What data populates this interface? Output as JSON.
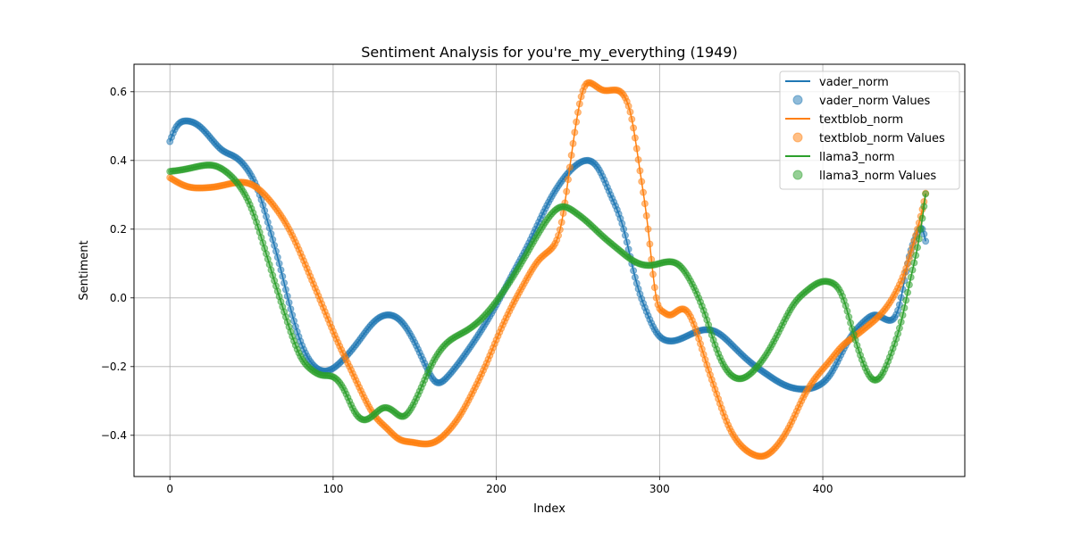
{
  "chart_data": {
    "type": "line",
    "title": "Sentiment Analysis for you're_my_everything (1949)",
    "xlabel": "Index",
    "ylabel": "Sentiment",
    "xlim": [
      -22,
      487
    ],
    "ylim": [
      -0.52,
      0.68
    ],
    "xticks": [
      0,
      100,
      200,
      300,
      400
    ],
    "yticks": [
      -0.4,
      -0.2,
      0.0,
      0.2,
      0.4,
      0.6
    ],
    "xtick_labels": [
      "0",
      "100",
      "200",
      "300",
      "400"
    ],
    "ytick_labels": [
      "−0.4",
      "−0.2",
      "0.0",
      "0.2",
      "0.4",
      "0.6"
    ],
    "grid": true,
    "legend_position": "top-right",
    "n_points": 464,
    "series": [
      {
        "name": "vader_norm",
        "scatter_name": "vader_norm Values",
        "color": "#1f77b4",
        "keypoints": [
          [
            0,
            0.455
          ],
          [
            3,
            0.49
          ],
          [
            10,
            0.515
          ],
          [
            18,
            0.5
          ],
          [
            25,
            0.465
          ],
          [
            32,
            0.43
          ],
          [
            40,
            0.41
          ],
          [
            48,
            0.37
          ],
          [
            55,
            0.3
          ],
          [
            60,
            0.22
          ],
          [
            67,
            0.1
          ],
          [
            75,
            -0.05
          ],
          [
            82,
            -0.15
          ],
          [
            90,
            -0.205
          ],
          [
            98,
            -0.21
          ],
          [
            105,
            -0.185
          ],
          [
            115,
            -0.13
          ],
          [
            125,
            -0.07
          ],
          [
            135,
            -0.05
          ],
          [
            142,
            -0.07
          ],
          [
            150,
            -0.13
          ],
          [
            157,
            -0.2
          ],
          [
            163,
            -0.245
          ],
          [
            170,
            -0.23
          ],
          [
            180,
            -0.17
          ],
          [
            190,
            -0.1
          ],
          [
            200,
            -0.02
          ],
          [
            210,
            0.07
          ],
          [
            220,
            0.16
          ],
          [
            230,
            0.26
          ],
          [
            240,
            0.34
          ],
          [
            250,
            0.39
          ],
          [
            256,
            0.4
          ],
          [
            262,
            0.38
          ],
          [
            270,
            0.3
          ],
          [
            278,
            0.2
          ],
          [
            285,
            0.06
          ],
          [
            292,
            -0.04
          ],
          [
            298,
            -0.1
          ],
          [
            305,
            -0.125
          ],
          [
            315,
            -0.115
          ],
          [
            325,
            -0.095
          ],
          [
            335,
            -0.1
          ],
          [
            345,
            -0.14
          ],
          [
            355,
            -0.185
          ],
          [
            365,
            -0.22
          ],
          [
            375,
            -0.25
          ],
          [
            385,
            -0.265
          ],
          [
            395,
            -0.26
          ],
          [
            405,
            -0.22
          ],
          [
            415,
            -0.13
          ],
          [
            425,
            -0.07
          ],
          [
            432,
            -0.05
          ],
          [
            440,
            -0.065
          ],
          [
            447,
            -0.02
          ],
          [
            452,
            0.1
          ],
          [
            458,
            0.19
          ],
          [
            461,
            0.2
          ],
          [
            463,
            0.165
          ]
        ]
      },
      {
        "name": "textblob_norm",
        "scatter_name": "textblob_norm Values",
        "color": "#ff7f0e",
        "keypoints": [
          [
            0,
            0.35
          ],
          [
            10,
            0.325
          ],
          [
            20,
            0.32
          ],
          [
            30,
            0.325
          ],
          [
            40,
            0.335
          ],
          [
            50,
            0.33
          ],
          [
            57,
            0.305
          ],
          [
            65,
            0.26
          ],
          [
            73,
            0.2
          ],
          [
            80,
            0.13
          ],
          [
            88,
            0.04
          ],
          [
            95,
            -0.04
          ],
          [
            103,
            -0.13
          ],
          [
            110,
            -0.2
          ],
          [
            118,
            -0.28
          ],
          [
            125,
            -0.34
          ],
          [
            133,
            -0.38
          ],
          [
            140,
            -0.41
          ],
          [
            148,
            -0.42
          ],
          [
            155,
            -0.425
          ],
          [
            162,
            -0.42
          ],
          [
            170,
            -0.39
          ],
          [
            178,
            -0.34
          ],
          [
            186,
            -0.27
          ],
          [
            194,
            -0.19
          ],
          [
            202,
            -0.1
          ],
          [
            210,
            -0.02
          ],
          [
            218,
            0.05
          ],
          [
            226,
            0.11
          ],
          [
            233,
            0.14
          ],
          [
            240,
            0.22
          ],
          [
            245,
            0.38
          ],
          [
            250,
            0.54
          ],
          [
            254,
            0.615
          ],
          [
            258,
            0.625
          ],
          [
            265,
            0.605
          ],
          [
            273,
            0.605
          ],
          [
            278,
            0.59
          ],
          [
            283,
            0.52
          ],
          [
            288,
            0.37
          ],
          [
            293,
            0.2
          ],
          [
            298,
            0.0
          ],
          [
            302,
            -0.04
          ],
          [
            306,
            -0.05
          ],
          [
            312,
            -0.035
          ],
          [
            317,
            -0.04
          ],
          [
            322,
            -0.09
          ],
          [
            328,
            -0.18
          ],
          [
            335,
            -0.28
          ],
          [
            342,
            -0.37
          ],
          [
            350,
            -0.43
          ],
          [
            357,
            -0.455
          ],
          [
            364,
            -0.46
          ],
          [
            372,
            -0.43
          ],
          [
            380,
            -0.37
          ],
          [
            388,
            -0.29
          ],
          [
            396,
            -0.23
          ],
          [
            404,
            -0.185
          ],
          [
            412,
            -0.14
          ],
          [
            420,
            -0.11
          ],
          [
            428,
            -0.08
          ],
          [
            436,
            -0.045
          ],
          [
            444,
            0.01
          ],
          [
            452,
            0.1
          ],
          [
            458,
            0.2
          ],
          [
            462,
            0.28
          ],
          [
            464,
            0.33
          ]
        ]
      },
      {
        "name": "llama3_norm",
        "scatter_name": "llama3_norm Values",
        "color": "#2ca02c",
        "keypoints": [
          [
            0,
            0.368
          ],
          [
            10,
            0.375
          ],
          [
            20,
            0.385
          ],
          [
            27,
            0.385
          ],
          [
            35,
            0.365
          ],
          [
            42,
            0.33
          ],
          [
            50,
            0.26
          ],
          [
            57,
            0.16
          ],
          [
            64,
            0.05
          ],
          [
            72,
            -0.07
          ],
          [
            80,
            -0.17
          ],
          [
            87,
            -0.21
          ],
          [
            93,
            -0.225
          ],
          [
            100,
            -0.23
          ],
          [
            107,
            -0.27
          ],
          [
            113,
            -0.33
          ],
          [
            119,
            -0.355
          ],
          [
            125,
            -0.34
          ],
          [
            131,
            -0.32
          ],
          [
            137,
            -0.33
          ],
          [
            143,
            -0.345
          ],
          [
            148,
            -0.32
          ],
          [
            155,
            -0.25
          ],
          [
            162,
            -0.18
          ],
          [
            170,
            -0.13
          ],
          [
            180,
            -0.1
          ],
          [
            190,
            -0.065
          ],
          [
            200,
            -0.01
          ],
          [
            210,
            0.06
          ],
          [
            220,
            0.14
          ],
          [
            230,
            0.22
          ],
          [
            240,
            0.265
          ],
          [
            248,
            0.25
          ],
          [
            256,
            0.22
          ],
          [
            265,
            0.18
          ],
          [
            275,
            0.14
          ],
          [
            285,
            0.105
          ],
          [
            295,
            0.095
          ],
          [
            305,
            0.105
          ],
          [
            312,
            0.095
          ],
          [
            320,
            0.04
          ],
          [
            328,
            -0.05
          ],
          [
            335,
            -0.15
          ],
          [
            342,
            -0.215
          ],
          [
            350,
            -0.235
          ],
          [
            358,
            -0.21
          ],
          [
            366,
            -0.16
          ],
          [
            374,
            -0.09
          ],
          [
            382,
            -0.02
          ],
          [
            390,
            0.02
          ],
          [
            398,
            0.045
          ],
          [
            405,
            0.045
          ],
          [
            412,
            0.005
          ],
          [
            418,
            -0.09
          ],
          [
            424,
            -0.18
          ],
          [
            430,
            -0.235
          ],
          [
            436,
            -0.225
          ],
          [
            442,
            -0.16
          ],
          [
            448,
            -0.07
          ],
          [
            454,
            0.06
          ],
          [
            460,
            0.2
          ],
          [
            464,
            0.34
          ]
        ]
      }
    ]
  },
  "legend": {
    "vader_line": "vader_norm",
    "vader_points": "vader_norm Values",
    "textblob_line": "textblob_norm",
    "textblob_points": "textblob_norm Values",
    "llama_line": "llama3_norm",
    "llama_points": "llama3_norm Values"
  }
}
